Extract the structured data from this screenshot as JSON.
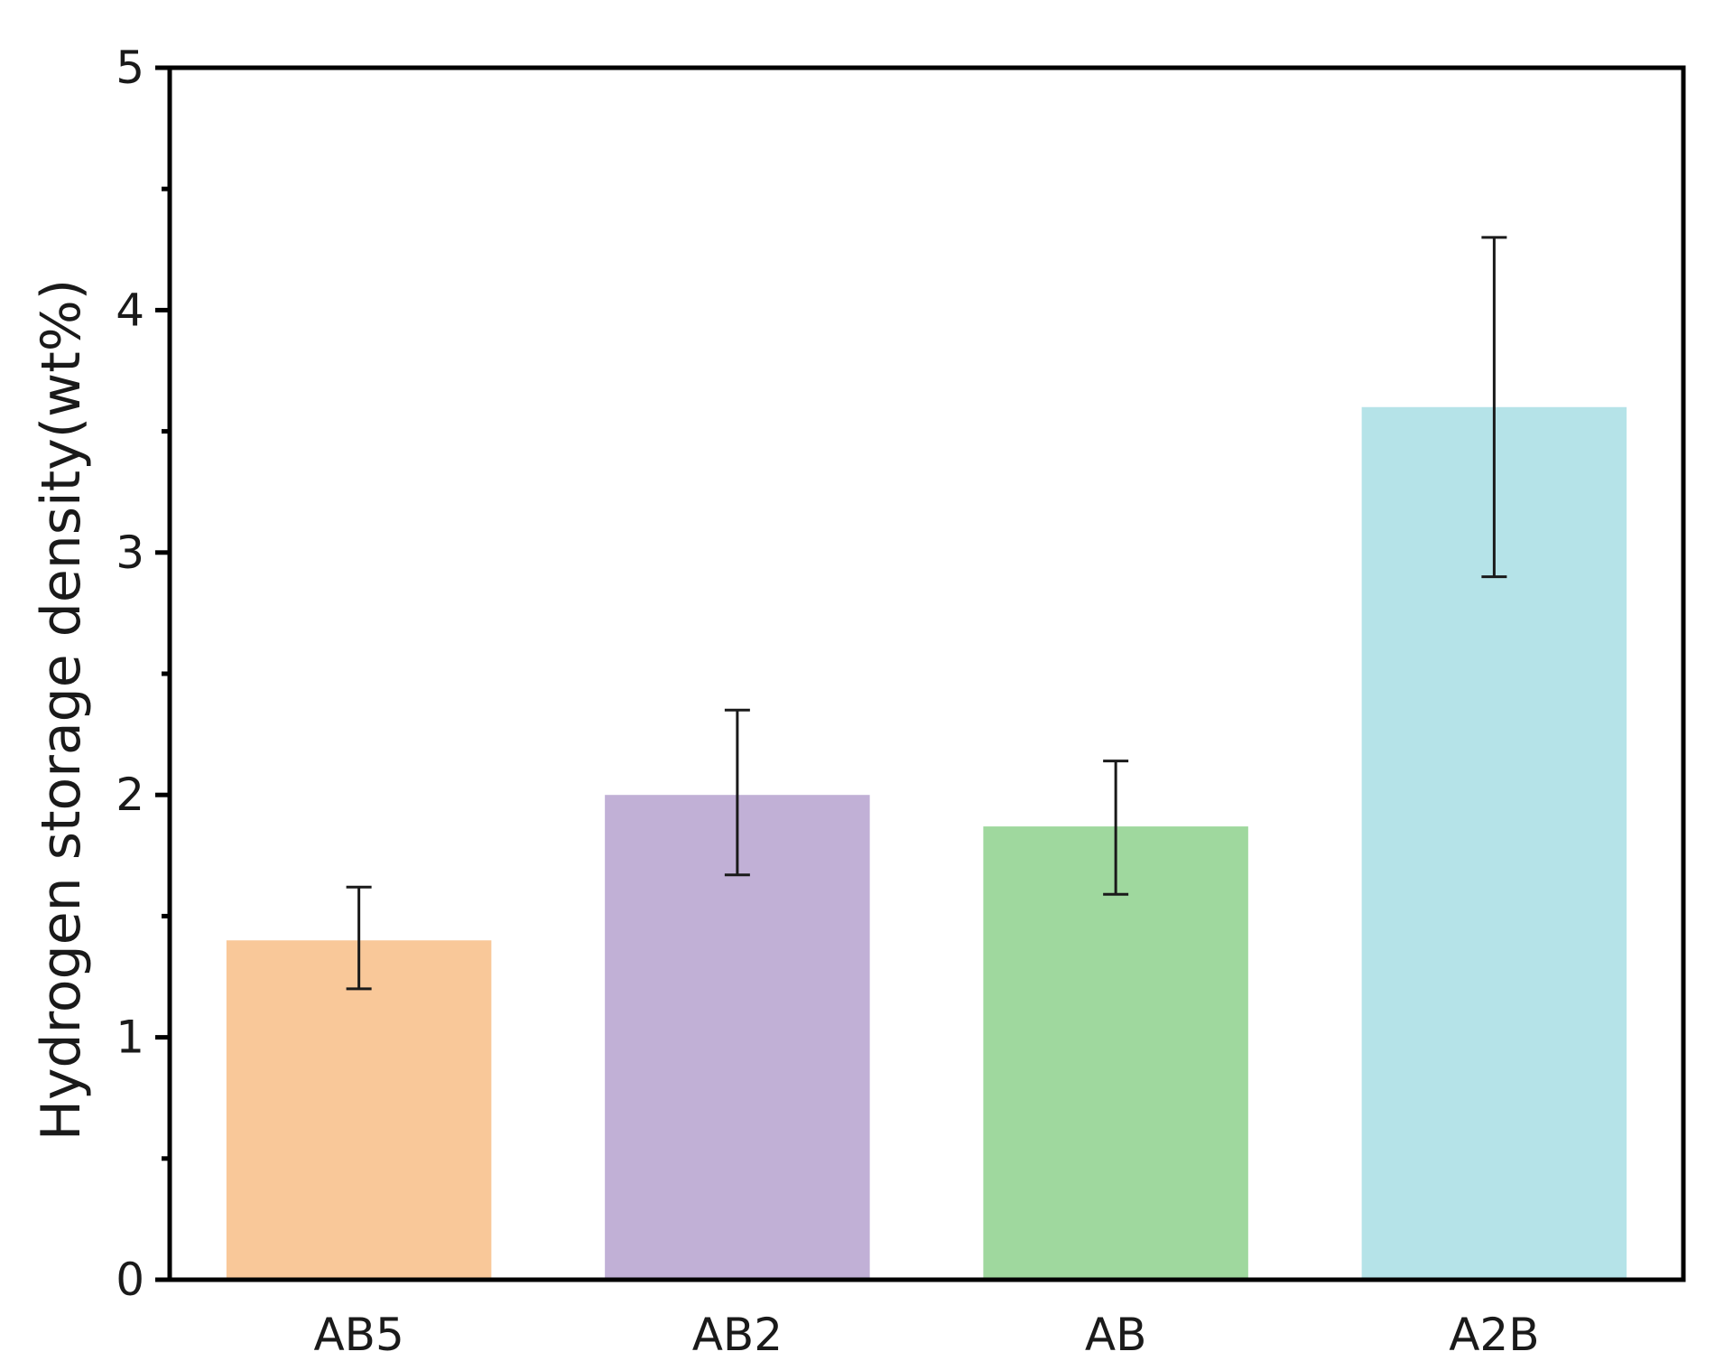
{
  "chart_data": {
    "type": "bar",
    "title": "",
    "xlabel": "",
    "ylabel": "Hydrogen storage density(wt%)",
    "ylim": [
      0,
      5
    ],
    "y_major_ticks": [
      0,
      1,
      2,
      3,
      4,
      5
    ],
    "y_tick_labels": [
      "0",
      "1",
      "2",
      "3",
      "4",
      "5"
    ],
    "y_minor_ticks": [
      0.5,
      1.5,
      2.5,
      3.5,
      4.5
    ],
    "grid": false,
    "legend": "none",
    "categories": [
      "AB5",
      "AB2",
      "AB",
      "A2B"
    ],
    "values": [
      1.4,
      2.0,
      1.87,
      3.6
    ],
    "error_low": [
      1.2,
      1.67,
      1.59,
      2.9
    ],
    "error_high": [
      1.62,
      2.35,
      2.14,
      4.3
    ],
    "colors": [
      "#f9c899",
      "#c1b0d6",
      "#9fd89e",
      "#b5e3e8"
    ],
    "error_bar_color": "#1a1a1a",
    "axis_color": "#000000"
  }
}
